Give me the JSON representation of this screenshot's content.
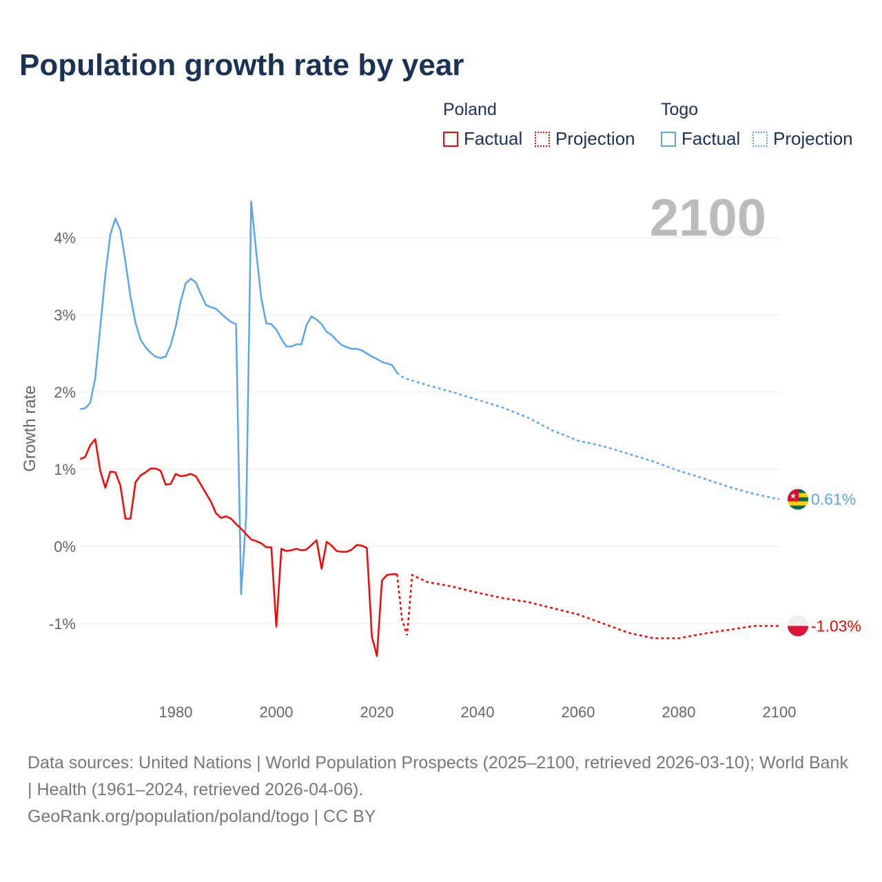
{
  "title": "Population growth rate by year",
  "legend": {
    "groups": [
      {
        "name": "Poland",
        "factual": "Factual",
        "projection": "Projection",
        "color": "#ff0000"
      },
      {
        "name": "Togo",
        "factual": "Factual",
        "projection": "Projection",
        "color": "#5aa5ec"
      }
    ]
  },
  "year_label": "2100",
  "footer": {
    "sources": "Data sources: United Nations | World Population Prospects (2025–2100, retrieved 2026-03-10); World Bank | Health (1961–2024, retrieved 2026-04-06).",
    "link": "GeoRank.org/population/poland/togo | CC BY"
  },
  "chart_data": {
    "type": "line",
    "title": "Population growth rate by year",
    "xlabel": "",
    "ylabel": "Growth rate",
    "xlim": [
      1961,
      2100
    ],
    "ylim": [
      -1.85,
      4.5
    ],
    "x_ticks": [
      1980,
      2000,
      2020,
      2040,
      2060,
      2080,
      2100
    ],
    "y_ticks": [
      -1,
      0,
      1,
      2,
      3,
      4
    ],
    "y_tick_labels": [
      "-1%",
      "0%",
      "1%",
      "2%",
      "3%",
      "4%"
    ],
    "grid": true,
    "legend_position": "top-right",
    "series": [
      {
        "name": "Togo",
        "color": "#5aa5ec",
        "end_label": "0.61%",
        "factual_start": 1961,
        "factual": [
          1.78,
          1.79,
          1.86,
          2.18,
          2.84,
          3.51,
          4.04,
          4.25,
          4.1,
          3.69,
          3.24,
          2.9,
          2.68,
          2.58,
          2.51,
          2.46,
          2.44,
          2.46,
          2.61,
          2.85,
          3.18,
          3.41,
          3.47,
          3.42,
          3.27,
          3.13,
          3.1,
          3.08,
          3.02,
          2.96,
          2.91,
          2.88,
          -0.62,
          0.38,
          4.47,
          3.82,
          3.22,
          2.89,
          2.88,
          2.81,
          2.69,
          2.59,
          2.59,
          2.62,
          2.62,
          2.87,
          2.98,
          2.94,
          2.88,
          2.78,
          2.74,
          2.67,
          2.61,
          2.58,
          2.56,
          2.56,
          2.54,
          2.5,
          2.46,
          2.43,
          2.39,
          2.37,
          2.35,
          2.25
        ],
        "projection": [
          [
            2024,
            2.25
          ],
          [
            2025,
            2.2
          ],
          [
            2026,
            2.17
          ],
          [
            2030,
            2.09
          ],
          [
            2035,
            2.0
          ],
          [
            2040,
            1.9
          ],
          [
            2045,
            1.8
          ],
          [
            2050,
            1.67
          ],
          [
            2055,
            1.5
          ],
          [
            2060,
            1.37
          ],
          [
            2065,
            1.3
          ],
          [
            2070,
            1.2
          ],
          [
            2075,
            1.1
          ],
          [
            2080,
            0.98
          ],
          [
            2085,
            0.88
          ],
          [
            2090,
            0.77
          ],
          [
            2095,
            0.68
          ],
          [
            2100,
            0.61
          ]
        ]
      },
      {
        "name": "Poland",
        "color": "#ff0000",
        "end_label": "-1.03%",
        "factual_start": 1961,
        "factual": [
          1.13,
          1.16,
          1.31,
          1.39,
          0.98,
          0.76,
          0.97,
          0.96,
          0.79,
          0.36,
          0.36,
          0.83,
          0.92,
          0.96,
          1.01,
          1.01,
          0.98,
          0.8,
          0.81,
          0.94,
          0.91,
          0.92,
          0.94,
          0.91,
          0.8,
          0.69,
          0.58,
          0.43,
          0.37,
          0.39,
          0.36,
          0.29,
          0.23,
          0.16,
          0.09,
          0.07,
          0.04,
          -0.01,
          -0.01,
          -1.04,
          -0.03,
          -0.06,
          -0.05,
          -0.03,
          -0.05,
          -0.04,
          0.02,
          0.08,
          -0.29,
          0.06,
          0.01,
          -0.06,
          -0.07,
          -0.07,
          -0.04,
          0.02,
          0.01,
          -0.02,
          -1.17,
          -1.42,
          -0.44,
          -0.37,
          -0.36,
          -0.36
        ],
        "projection": [
          [
            2024,
            -0.36
          ],
          [
            2025,
            -0.95
          ],
          [
            2026,
            -1.15
          ],
          [
            2027,
            -0.37
          ],
          [
            2030,
            -0.46
          ],
          [
            2035,
            -0.52
          ],
          [
            2040,
            -0.6
          ],
          [
            2045,
            -0.67
          ],
          [
            2050,
            -0.72
          ],
          [
            2055,
            -0.8
          ],
          [
            2060,
            -0.88
          ],
          [
            2065,
            -1.0
          ],
          [
            2070,
            -1.12
          ],
          [
            2075,
            -1.19
          ],
          [
            2080,
            -1.19
          ],
          [
            2085,
            -1.13
          ],
          [
            2090,
            -1.08
          ],
          [
            2095,
            -1.03
          ],
          [
            2100,
            -1.03
          ]
        ]
      }
    ]
  }
}
